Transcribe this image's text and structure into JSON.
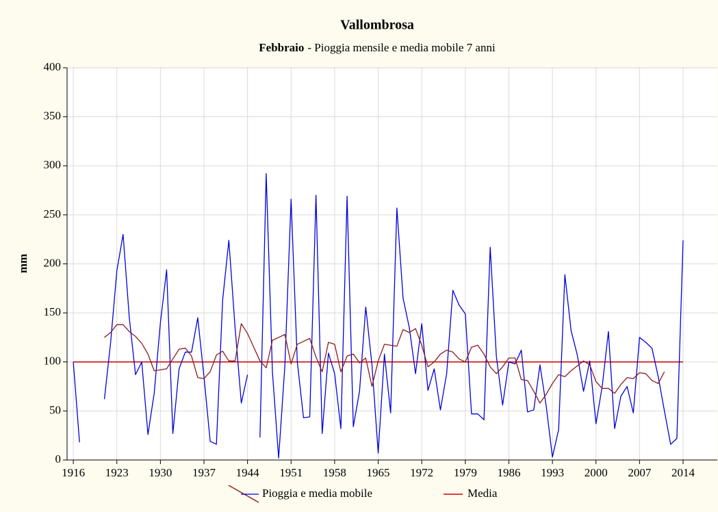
{
  "chart_data": {
    "type": "line",
    "title": "Vallombrosa",
    "subtitle_bold": "Febbraio",
    "subtitle": "- Pioggia mensile e media mobile 7 anni",
    "y_label": "mm",
    "x": [
      1916,
      1917,
      1918,
      1919,
      1920,
      1921,
      1922,
      1923,
      1924,
      1925,
      1926,
      1927,
      1928,
      1929,
      1930,
      1931,
      1932,
      1933,
      1934,
      1935,
      1936,
      1937,
      1938,
      1939,
      1940,
      1941,
      1942,
      1943,
      1944,
      1945,
      1946,
      1947,
      1948,
      1949,
      1950,
      1951,
      1952,
      1953,
      1954,
      1955,
      1956,
      1957,
      1958,
      1959,
      1960,
      1961,
      1962,
      1963,
      1964,
      1965,
      1966,
      1967,
      1968,
      1969,
      1970,
      1971,
      1972,
      1973,
      1974,
      1975,
      1976,
      1977,
      1978,
      1979,
      1980,
      1981,
      1982,
      1983,
      1984,
      1985,
      1986,
      1987,
      1988,
      1989,
      1990,
      1991,
      1992,
      1993,
      1994,
      1995,
      1996,
      1997,
      1998,
      1999,
      2000,
      2001,
      2002,
      2003,
      2004,
      2005,
      2006,
      2007,
      2008,
      2009,
      2010,
      2011,
      2012,
      2013,
      2014
    ],
    "series": [
      {
        "name": "Pioggia e media mobile",
        "color": "#0000dd",
        "values": [
          100,
          18,
          null,
          null,
          null,
          62,
          120,
          193,
          230,
          145,
          87,
          100,
          26,
          68,
          140,
          194,
          27,
          93,
          110,
          110,
          145,
          85,
          19,
          16,
          163,
          224,
          135,
          58,
          87,
          null,
          23,
          292,
          90,
          2,
          96,
          266,
          100,
          43,
          44,
          270,
          27,
          109,
          88,
          32,
          269,
          34,
          70,
          156,
          97,
          7,
          108,
          48,
          257,
          165,
          135,
          88,
          139,
          71,
          93,
          51,
          88,
          173,
          158,
          149,
          47,
          47,
          41,
          217,
          105,
          56,
          100,
          98,
          112,
          49,
          51,
          97,
          55,
          3,
          31,
          189,
          132,
          107,
          70,
          101,
          37,
          75,
          131,
          32,
          65,
          75,
          48,
          125,
          120,
          114,
          85,
          50,
          16,
          22,
          224
        ]
      },
      {
        "color": "#8b1a1a",
        "values": [
          null,
          null,
          null,
          null,
          null,
          125,
          130,
          138,
          138,
          131,
          126,
          119,
          108,
          91,
          92,
          93,
          103,
          113,
          114,
          106,
          84,
          83,
          90,
          107,
          111,
          101,
          101,
          139,
          129,
          115,
          101,
          94,
          122,
          125,
          128,
          98,
          118,
          121,
          124,
          105,
          90,
          120,
          118,
          90,
          106,
          108,
          99,
          104,
          75,
          101,
          118,
          117,
          116,
          133,
          130,
          134,
          117,
          95,
          100,
          108,
          112,
          110,
          103,
          100,
          115,
          117,
          108,
          95,
          88,
          95,
          104,
          104,
          82,
          81,
          70,
          58,
          67,
          78,
          87,
          85,
          91,
          96,
          101,
          97,
          80,
          73,
          73,
          68,
          77,
          84,
          83,
          89,
          88,
          81,
          78,
          90,
          null,
          null,
          null
        ]
      }
    ],
    "reference_line": {
      "name": "Media",
      "value": 100,
      "color": "#cc0000"
    },
    "xlim": [
      1915,
      2019.5
    ],
    "xticks": [
      1916,
      1923,
      1930,
      1937,
      1944,
      1951,
      1958,
      1965,
      1972,
      1979,
      1986,
      1993,
      2000,
      2007,
      2014
    ],
    "ylim": [
      0,
      400
    ],
    "yticks": [
      0,
      50,
      100,
      150,
      200,
      250,
      300,
      350,
      400
    ],
    "grid": true
  }
}
